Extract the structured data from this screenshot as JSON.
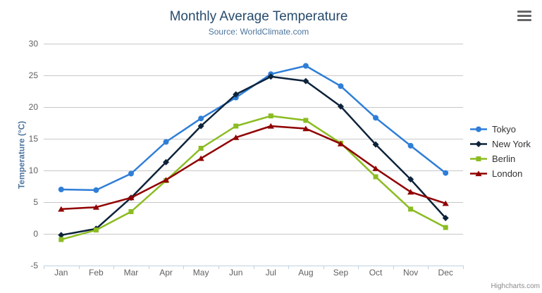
{
  "chart_data": {
    "type": "line",
    "title": "Monthly Average Temperature",
    "subtitle": "Source: WorldClimate.com",
    "categories": [
      "Jan",
      "Feb",
      "Mar",
      "Apr",
      "May",
      "Jun",
      "Jul",
      "Aug",
      "Sep",
      "Oct",
      "Nov",
      "Dec"
    ],
    "xlabel": "",
    "ylabel": "Temperature (°C)",
    "ylim": [
      -5,
      30
    ],
    "ytick_step": 5,
    "grid": true,
    "legend_position": "right",
    "series": [
      {
        "name": "Tokyo",
        "color": "#2f7ed8",
        "marker": "circle",
        "values": [
          7.0,
          6.9,
          9.5,
          14.5,
          18.2,
          21.5,
          25.2,
          26.5,
          23.3,
          18.3,
          13.9,
          9.6
        ]
      },
      {
        "name": "New York",
        "color": "#0d233a",
        "marker": "diamond",
        "values": [
          -0.2,
          0.8,
          5.7,
          11.3,
          17.0,
          22.0,
          24.8,
          24.1,
          20.1,
          14.1,
          8.6,
          2.5
        ]
      },
      {
        "name": "Berlin",
        "color": "#8bbc21",
        "marker": "square",
        "values": [
          -0.9,
          0.6,
          3.5,
          8.4,
          13.5,
          17.0,
          18.6,
          17.9,
          14.3,
          9.0,
          3.9,
          1.0
        ]
      },
      {
        "name": "London",
        "color": "#910000",
        "marker": "triangle",
        "values": [
          3.9,
          4.2,
          5.7,
          8.5,
          11.9,
          15.2,
          17.0,
          16.6,
          14.2,
          10.3,
          6.6,
          4.8
        ]
      }
    ]
  },
  "export_menu": {
    "icon": "hamburger-menu-icon"
  },
  "credit": {
    "label": "Highcharts.com"
  },
  "colors": {
    "title": "#274b6d",
    "subtitle": "#4d759e",
    "axis_title": "#4d759e",
    "axis_labels": "#606060",
    "gridline": "#c8c8c8",
    "axis_line": "#c0d0e0",
    "legend_text": "#333333"
  }
}
